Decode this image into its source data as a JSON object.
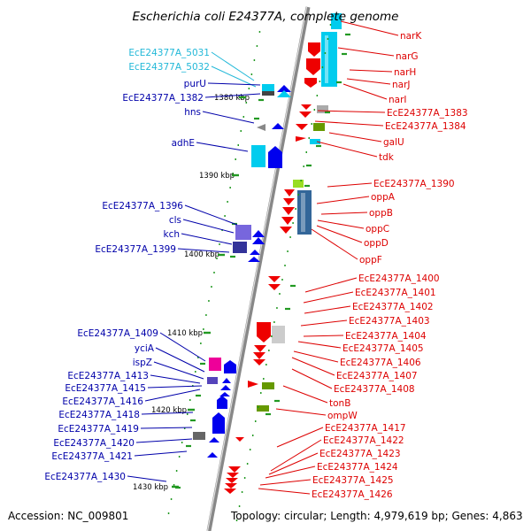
{
  "title": "Escherichia coli E24377A, complete genome",
  "accession": "Accession: NC_009801",
  "topology": "Topology: circular; Length: 4,979,619 bp; Genes: 4,863",
  "colors": {
    "left_label": "#0000aa",
    "cyan_label": "#22b8d8",
    "right_label": "#dd0000",
    "backbone": "#888888",
    "tick": "#229922"
  },
  "kbp_marks": [
    "1380 kbp",
    "1390 kbp",
    "1400 kbp",
    "1410 kbp",
    "1420 kbp",
    "1430 kbp"
  ],
  "left_labels": [
    {
      "text": "EcE24377A_5031",
      "color": "cyan"
    },
    {
      "text": "EcE24377A_5032",
      "color": "cyan"
    },
    {
      "text": "purU",
      "color": "blue"
    },
    {
      "text": "EcE24377A_1382",
      "color": "blue"
    },
    {
      "text": "hns",
      "color": "blue"
    },
    {
      "text": "adhE",
      "color": "blue"
    },
    {
      "text": "EcE24377A_1396",
      "color": "blue"
    },
    {
      "text": "cls",
      "color": "blue"
    },
    {
      "text": "kch",
      "color": "blue"
    },
    {
      "text": "EcE24377A_1399",
      "color": "blue"
    },
    {
      "text": "EcE24377A_1409",
      "color": "blue"
    },
    {
      "text": "yciA",
      "color": "blue"
    },
    {
      "text": "ispZ",
      "color": "blue"
    },
    {
      "text": "EcE24377A_1413",
      "color": "blue"
    },
    {
      "text": "EcE24377A_1415",
      "color": "blue"
    },
    {
      "text": "EcE24377A_1416",
      "color": "blue"
    },
    {
      "text": "EcE24377A_1418",
      "color": "blue"
    },
    {
      "text": "EcE24377A_1419",
      "color": "blue"
    },
    {
      "text": "EcE24377A_1420",
      "color": "blue"
    },
    {
      "text": "EcE24377A_1421",
      "color": "blue"
    },
    {
      "text": "EcE24377A_1430",
      "color": "blue"
    }
  ],
  "right_labels": [
    "narK",
    "narG",
    "narH",
    "narJ",
    "narI",
    "EcE24377A_1383",
    "EcE24377A_1384",
    "galU",
    "tdk",
    "EcE24377A_1390",
    "oppA",
    "oppB",
    "oppC",
    "oppD",
    "oppF",
    "EcE24377A_1400",
    "EcE24377A_1401",
    "EcE24377A_1402",
    "EcE24377A_1403",
    "EcE24377A_1404",
    "EcE24377A_1405",
    "EcE24377A_1406",
    "EcE24377A_1407",
    "EcE24377A_1408",
    "tonB",
    "ompW",
    "EcE24377A_1417",
    "EcE24377A_1422",
    "EcE24377A_1423",
    "EcE24377A_1424",
    "EcE24377A_1425",
    "EcE24377A_1426"
  ]
}
